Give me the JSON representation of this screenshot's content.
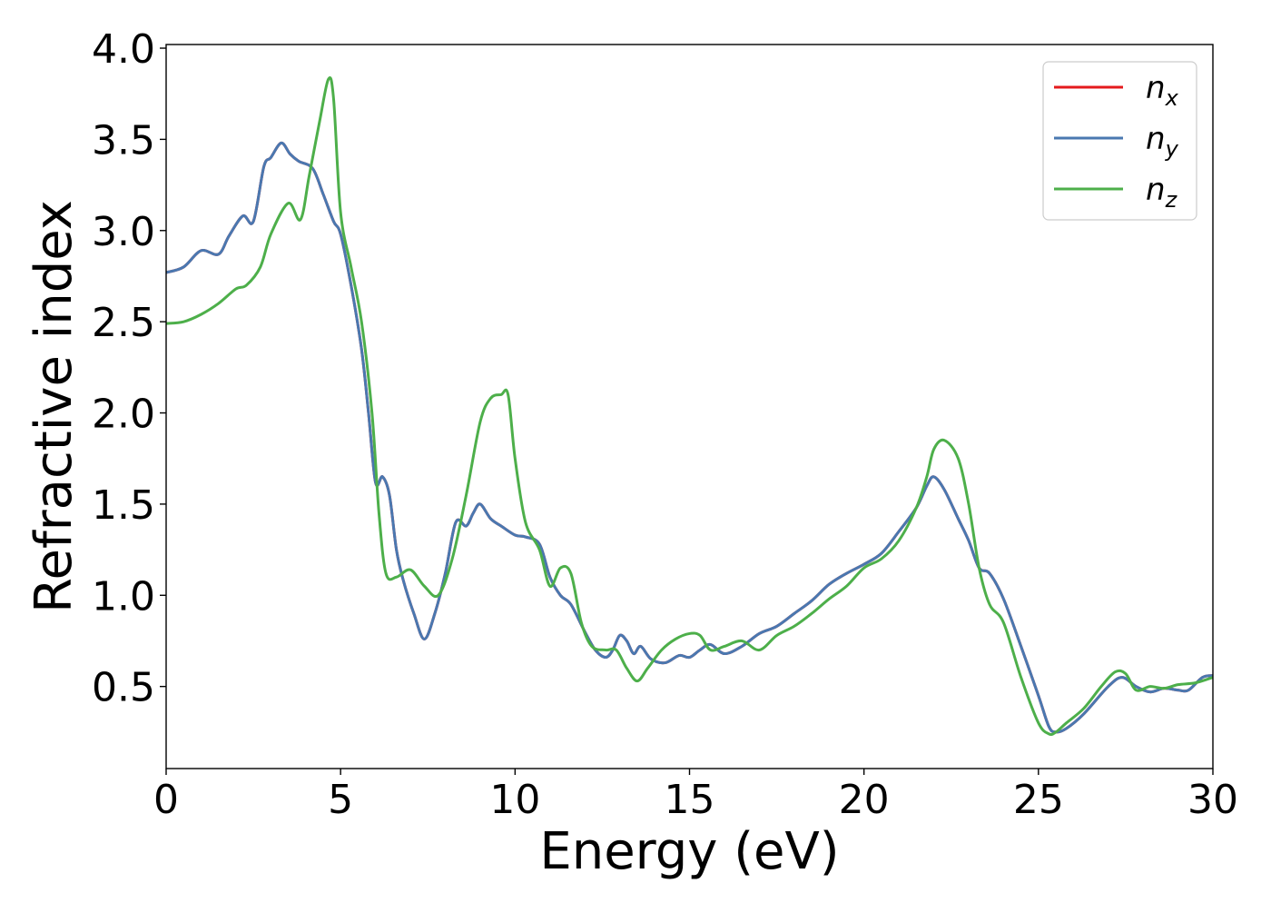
{
  "chart_data": {
    "type": "line",
    "title": "",
    "xlabel": "Energy (eV)",
    "ylabel": "Refractive index",
    "xlim": [
      0,
      30
    ],
    "ylim": [
      0.05,
      4.02
    ],
    "xticks": [
      0,
      5,
      10,
      15,
      20,
      25,
      30
    ],
    "yticks": [
      0.5,
      1.0,
      1.5,
      2.0,
      2.5,
      3.0,
      3.5,
      4.0
    ],
    "xtick_labels": [
      "0",
      "5",
      "10",
      "15",
      "20",
      "25",
      "30"
    ],
    "ytick_labels": [
      "0.5",
      "1.0",
      "1.5",
      "2.0",
      "2.5",
      "3.0",
      "3.5",
      "4.0"
    ],
    "grid": false,
    "legend_position": "top-right",
    "series": [
      {
        "name": "n_x",
        "label_base": "n",
        "label_sub": "x",
        "color": "#e41a1c",
        "x": [
          0,
          0.5,
          1.0,
          1.5,
          1.8,
          2.2,
          2.5,
          2.8,
          3.0,
          3.3,
          3.55,
          3.8,
          4.2,
          4.5,
          4.8,
          5.0,
          5.3,
          5.6,
          5.8,
          6.0,
          6.2,
          6.4,
          6.6,
          6.8,
          7.1,
          7.4,
          7.7,
          8.0,
          8.3,
          8.6,
          8.8,
          9.0,
          9.3,
          9.6,
          10.0,
          10.3,
          10.7,
          11.0,
          11.3,
          11.6,
          12.0,
          12.3,
          12.6,
          12.8,
          13.0,
          13.2,
          13.4,
          13.6,
          13.9,
          14.3,
          14.7,
          15.0,
          15.3,
          15.6,
          16.0,
          16.5,
          17.0,
          17.5,
          18.0,
          18.5,
          19.0,
          19.5,
          20.0,
          20.5,
          21.0,
          21.5,
          21.8,
          22.0,
          22.3,
          22.7,
          23.0,
          23.3,
          23.6,
          24.0,
          24.5,
          25.0,
          25.3,
          25.5,
          25.8,
          26.3,
          27.0,
          27.4,
          27.8,
          28.2,
          28.6,
          29.0,
          29.3,
          29.7,
          30.0
        ],
        "y": [
          2.77,
          2.8,
          2.89,
          2.87,
          2.97,
          3.08,
          3.05,
          3.35,
          3.4,
          3.48,
          3.42,
          3.38,
          3.34,
          3.2,
          3.05,
          2.98,
          2.7,
          2.35,
          2.0,
          1.62,
          1.65,
          1.55,
          1.25,
          1.08,
          0.9,
          0.76,
          0.9,
          1.12,
          1.4,
          1.38,
          1.45,
          1.5,
          1.42,
          1.38,
          1.33,
          1.32,
          1.28,
          1.1,
          1.0,
          0.95,
          0.8,
          0.7,
          0.66,
          0.7,
          0.78,
          0.75,
          0.68,
          0.72,
          0.65,
          0.63,
          0.67,
          0.66,
          0.7,
          0.73,
          0.68,
          0.72,
          0.79,
          0.83,
          0.9,
          0.97,
          1.06,
          1.12,
          1.17,
          1.23,
          1.35,
          1.48,
          1.6,
          1.65,
          1.58,
          1.42,
          1.3,
          1.15,
          1.12,
          0.98,
          0.72,
          0.45,
          0.28,
          0.25,
          0.27,
          0.35,
          0.5,
          0.55,
          0.5,
          0.47,
          0.49,
          0.48,
          0.48,
          0.55,
          0.56
        ]
      },
      {
        "name": "n_y",
        "label_base": "n",
        "label_sub": "y",
        "color": "#4a78b0",
        "x": [
          0,
          0.5,
          1.0,
          1.5,
          1.8,
          2.2,
          2.5,
          2.8,
          3.0,
          3.3,
          3.55,
          3.8,
          4.2,
          4.5,
          4.8,
          5.0,
          5.3,
          5.6,
          5.8,
          6.0,
          6.2,
          6.4,
          6.6,
          6.8,
          7.1,
          7.4,
          7.7,
          8.0,
          8.3,
          8.6,
          8.8,
          9.0,
          9.3,
          9.6,
          10.0,
          10.3,
          10.7,
          11.0,
          11.3,
          11.6,
          12.0,
          12.3,
          12.6,
          12.8,
          13.0,
          13.2,
          13.4,
          13.6,
          13.9,
          14.3,
          14.7,
          15.0,
          15.3,
          15.6,
          16.0,
          16.5,
          17.0,
          17.5,
          18.0,
          18.5,
          19.0,
          19.5,
          20.0,
          20.5,
          21.0,
          21.5,
          21.8,
          22.0,
          22.3,
          22.7,
          23.0,
          23.3,
          23.6,
          24.0,
          24.5,
          25.0,
          25.3,
          25.5,
          25.8,
          26.3,
          27.0,
          27.4,
          27.8,
          28.2,
          28.6,
          29.0,
          29.3,
          29.7,
          30.0
        ],
        "y": [
          2.77,
          2.8,
          2.89,
          2.87,
          2.97,
          3.08,
          3.05,
          3.35,
          3.4,
          3.48,
          3.42,
          3.38,
          3.34,
          3.2,
          3.05,
          2.98,
          2.7,
          2.35,
          2.0,
          1.62,
          1.65,
          1.55,
          1.25,
          1.08,
          0.9,
          0.76,
          0.9,
          1.12,
          1.4,
          1.38,
          1.45,
          1.5,
          1.42,
          1.38,
          1.33,
          1.32,
          1.28,
          1.1,
          1.0,
          0.95,
          0.8,
          0.7,
          0.66,
          0.7,
          0.78,
          0.75,
          0.68,
          0.72,
          0.65,
          0.63,
          0.67,
          0.66,
          0.7,
          0.73,
          0.68,
          0.72,
          0.79,
          0.83,
          0.9,
          0.97,
          1.06,
          1.12,
          1.17,
          1.23,
          1.35,
          1.48,
          1.6,
          1.65,
          1.58,
          1.42,
          1.3,
          1.15,
          1.12,
          0.98,
          0.72,
          0.45,
          0.28,
          0.25,
          0.27,
          0.35,
          0.5,
          0.55,
          0.5,
          0.47,
          0.49,
          0.48,
          0.48,
          0.55,
          0.56
        ]
      },
      {
        "name": "n_z",
        "label_base": "n",
        "label_sub": "z",
        "color": "#4daf4a",
        "x": [
          0,
          0.5,
          1.0,
          1.5,
          2.0,
          2.3,
          2.7,
          3.0,
          3.5,
          3.85,
          4.1,
          4.4,
          4.65,
          4.8,
          5.0,
          5.3,
          5.6,
          5.9,
          6.1,
          6.3,
          6.6,
          7.0,
          7.4,
          7.8,
          8.2,
          8.6,
          9.0,
          9.3,
          9.6,
          9.8,
          10.0,
          10.3,
          10.7,
          11.0,
          11.3,
          11.6,
          11.9,
          12.2,
          12.6,
          12.9,
          13.2,
          13.5,
          13.8,
          14.2,
          14.6,
          15.0,
          15.3,
          15.6,
          16.0,
          16.5,
          17.0,
          17.5,
          18.0,
          18.5,
          19.0,
          19.5,
          20.0,
          20.5,
          21.0,
          21.5,
          21.8,
          22.0,
          22.3,
          22.7,
          23.0,
          23.3,
          23.6,
          24.0,
          24.5,
          25.0,
          25.3,
          25.5,
          25.8,
          26.3,
          26.8,
          27.2,
          27.5,
          27.8,
          28.2,
          28.6,
          29.0,
          29.5,
          30.0
        ],
        "y": [
          2.49,
          2.5,
          2.54,
          2.6,
          2.68,
          2.7,
          2.8,
          2.98,
          3.15,
          3.06,
          3.3,
          3.6,
          3.83,
          3.72,
          3.1,
          2.8,
          2.5,
          2.0,
          1.45,
          1.12,
          1.1,
          1.14,
          1.05,
          1.0,
          1.2,
          1.55,
          1.95,
          2.08,
          2.1,
          2.1,
          1.75,
          1.4,
          1.25,
          1.05,
          1.15,
          1.12,
          0.85,
          0.72,
          0.7,
          0.7,
          0.6,
          0.53,
          0.6,
          0.7,
          0.76,
          0.79,
          0.78,
          0.7,
          0.72,
          0.75,
          0.7,
          0.78,
          0.83,
          0.9,
          0.98,
          1.05,
          1.15,
          1.2,
          1.3,
          1.48,
          1.65,
          1.8,
          1.85,
          1.75,
          1.5,
          1.15,
          0.95,
          0.85,
          0.55,
          0.3,
          0.24,
          0.25,
          0.3,
          0.38,
          0.5,
          0.58,
          0.57,
          0.48,
          0.5,
          0.49,
          0.51,
          0.52,
          0.55
        ]
      }
    ]
  }
}
